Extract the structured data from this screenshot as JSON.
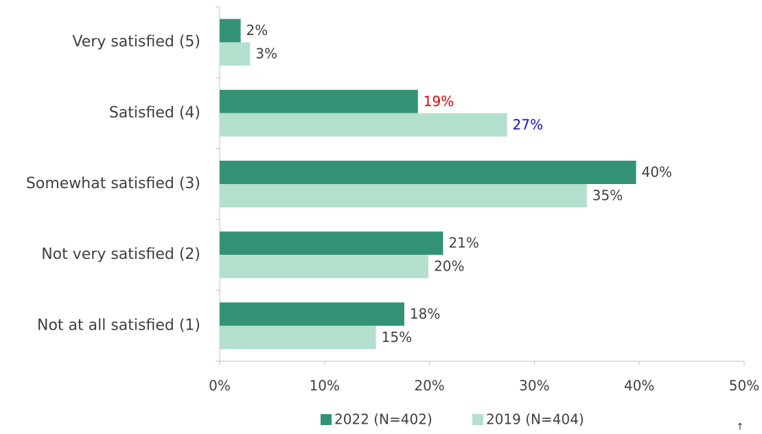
{
  "chart_data": {
    "type": "hbar",
    "categories": [
      "Very satisfied (5)",
      "Satisfied (4)",
      "Somewhat satisfied (3)",
      "Not very satisfied (2)",
      "Not at all satisfied (1)"
    ],
    "series": [
      {
        "name": "2022 (N=402)",
        "color": "#339276",
        "values": [
          2.0,
          18.9,
          39.7,
          21.3,
          17.6
        ],
        "value_labels": [
          "2%",
          "19%",
          "40%",
          "21%",
          "18%"
        ],
        "label_colors": [
          "#404040",
          "#e00000",
          "#404040",
          "#404040",
          "#404040"
        ]
      },
      {
        "name": "2019 (N=404)",
        "color": "#b3e0cc",
        "values": [
          2.9,
          27.4,
          35.0,
          19.9,
          14.9
        ],
        "value_labels": [
          "3%",
          "27%",
          "35%",
          "20%",
          "15%"
        ],
        "label_colors": [
          "#404040",
          "#1010d0",
          "#404040",
          "#404040",
          "#404040"
        ]
      }
    ],
    "xlim": [
      0,
      50
    ],
    "xticks": [
      {
        "value": 0,
        "label": "0%"
      },
      {
        "value": 10,
        "label": "10%"
      },
      {
        "value": 20,
        "label": "20%"
      },
      {
        "value": 30,
        "label": "30%"
      },
      {
        "value": 40,
        "label": "40%"
      },
      {
        "value": 50,
        "label": "50%"
      }
    ],
    "legend": "bottom",
    "annotation": "↑"
  }
}
